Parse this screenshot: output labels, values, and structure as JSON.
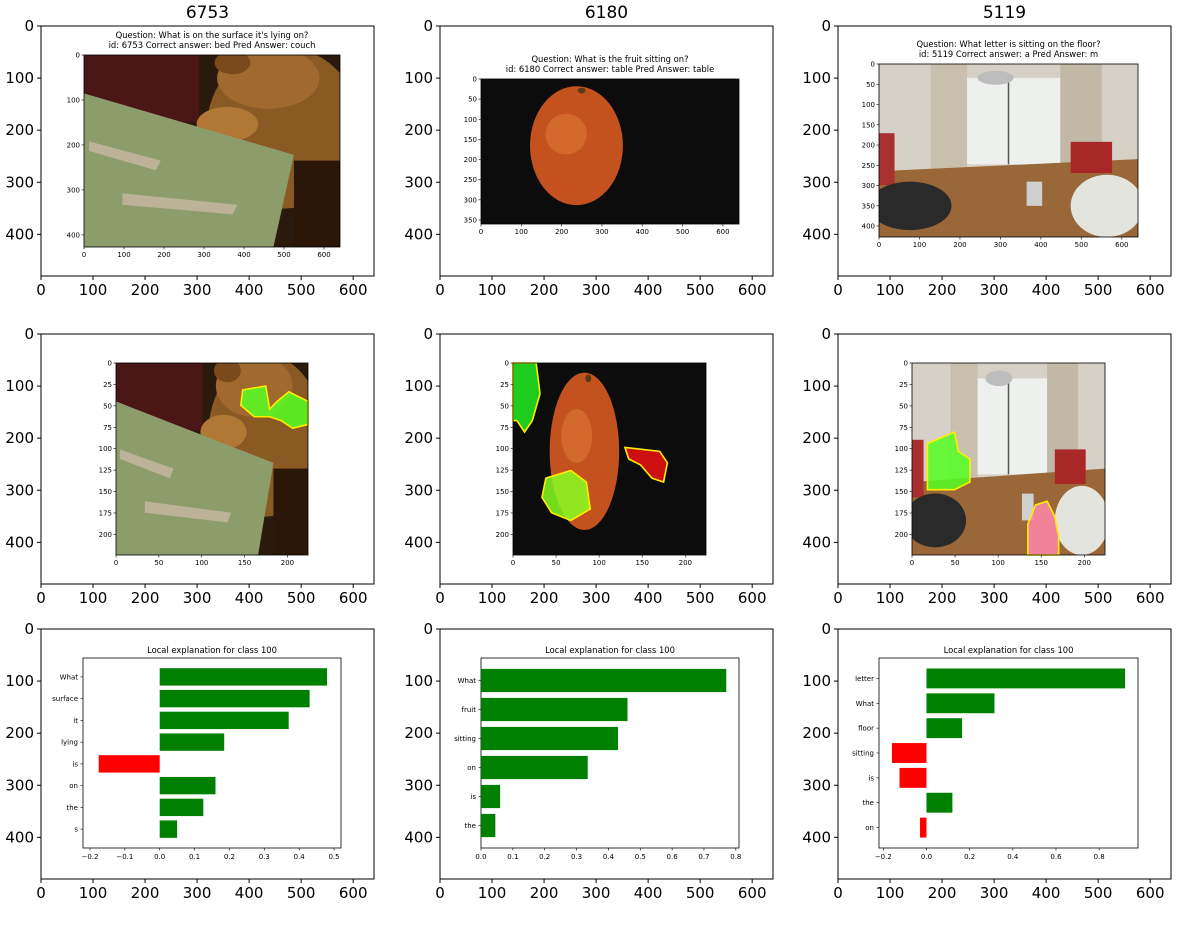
{
  "figure": {
    "columns": [
      {
        "title": "6753",
        "question_line1": "Question: What is on the surface it's lying on?",
        "question_line2": "id: 6753 Correct answer: bed Pred Answer: couch"
      },
      {
        "title": "6180",
        "question_line1": "Question: What is the fruit sitting on?",
        "question_line2": "id: 6180 Correct answer: table Pred Answer: table"
      },
      {
        "title": "5119",
        "question_line1": "Question: What letter is sitting on the floor?",
        "question_line2": "id: 5119 Correct answer: a Pred Answer: m"
      }
    ],
    "outer_axes": {
      "x_ticks": [
        0,
        100,
        200,
        300,
        400,
        500,
        600
      ],
      "y_ticks": [
        0,
        100,
        200,
        300,
        400
      ],
      "xlim": [
        0,
        640
      ],
      "ylim": [
        480,
        0
      ]
    },
    "photos": [
      {
        "column": 0,
        "depicts": "teddy bear holding a Happy Birthday card",
        "colors": [
          "#3a2410",
          "#9a6a2c",
          "#8ea06e"
        ]
      },
      {
        "column": 1,
        "depicts": "orange on a black background",
        "colors": [
          "#0c0c0c",
          "#c95a22",
          "#e07a3a"
        ]
      },
      {
        "column": 2,
        "depicts": "living room with a letter a on the floor",
        "colors": [
          "#d8d2c8",
          "#9a6a3a",
          "#b83030"
        ]
      }
    ]
  },
  "chart_data": [
    {
      "type": "image",
      "panel": "row1-col1",
      "xlim": [
        0,
        640
      ],
      "ylim": [
        427,
        0
      ],
      "x_ticks": [
        0,
        100,
        200,
        300,
        400,
        500,
        600
      ],
      "y_ticks": [
        0,
        100,
        200,
        300,
        400
      ],
      "title": "Question: What is on the surface it's lying on? / id: 6753 Correct answer: bed Pred Answer: couch"
    },
    {
      "type": "image",
      "panel": "row1-col2",
      "xlim": [
        0,
        640
      ],
      "ylim": [
        360,
        0
      ],
      "x_ticks": [
        0,
        100,
        200,
        300,
        400,
        500,
        600
      ],
      "y_ticks": [
        0,
        50,
        100,
        150,
        200,
        250,
        300,
        350
      ],
      "title": "Question: What is the fruit sitting on? / id: 6180 Correct answer: table Pred Answer: table"
    },
    {
      "type": "image",
      "panel": "row1-col3",
      "xlim": [
        0,
        640
      ],
      "ylim": [
        427,
        0
      ],
      "x_ticks": [
        0,
        100,
        200,
        300,
        400,
        500,
        600
      ],
      "y_ticks": [
        0,
        50,
        100,
        150,
        200,
        250,
        300,
        350,
        400
      ],
      "title": "Question: What letter is sitting on the floor? / id: 5119 Correct answer: a Pred Answer: m"
    },
    {
      "type": "image",
      "panel": "row2-col1",
      "xlim": [
        0,
        224
      ],
      "ylim": [
        224,
        0
      ],
      "x_ticks": [
        0,
        50,
        100,
        150,
        200
      ],
      "y_ticks": [
        0,
        25,
        50,
        75,
        100,
        125,
        150,
        175,
        200
      ],
      "overlay": "segmentation highlight"
    },
    {
      "type": "image",
      "panel": "row2-col2",
      "xlim": [
        0,
        224
      ],
      "ylim": [
        224,
        0
      ],
      "x_ticks": [
        0,
        50,
        100,
        150,
        200
      ],
      "y_ticks": [
        0,
        25,
        50,
        75,
        100,
        125,
        150,
        175,
        200
      ],
      "overlay": "segmentation highlight"
    },
    {
      "type": "image",
      "panel": "row2-col3",
      "xlim": [
        0,
        224
      ],
      "ylim": [
        224,
        0
      ],
      "x_ticks": [
        0,
        50,
        100,
        150,
        200
      ],
      "y_ticks": [
        0,
        25,
        50,
        75,
        100,
        125,
        150,
        175,
        200
      ],
      "overlay": "segmentation highlight"
    },
    {
      "type": "bar",
      "orientation": "horizontal",
      "panel": "row3-col1",
      "title": "Local explanation for class 100",
      "categories": [
        "What",
        "surface",
        "it",
        "lying",
        "is",
        "on",
        "the",
        "s"
      ],
      "values": [
        0.48,
        0.43,
        0.37,
        0.185,
        -0.175,
        0.16,
        0.125,
        0.05
      ],
      "xlim": [
        -0.22,
        0.52
      ],
      "x_ticks": [
        -0.2,
        -0.1,
        0.0,
        0.1,
        0.2,
        0.3,
        0.4,
        0.5
      ],
      "x_tick_labels": [
        "−0.2",
        "−0.1",
        "0.0",
        "0.1",
        "0.2",
        "0.3",
        "0.4",
        "0.5"
      ],
      "colors": {
        "positive": "#008000",
        "negative": "#ff0000"
      }
    },
    {
      "type": "bar",
      "orientation": "horizontal",
      "panel": "row3-col2",
      "title": "Local explanation for class 100",
      "categories": [
        "What",
        "fruit",
        "sitting",
        "on",
        "is",
        "the"
      ],
      "values": [
        0.77,
        0.46,
        0.43,
        0.335,
        0.06,
        0.045
      ],
      "xlim": [
        0,
        0.81
      ],
      "x_ticks": [
        0.0,
        0.1,
        0.2,
        0.3,
        0.4,
        0.5,
        0.6,
        0.7,
        0.8
      ],
      "x_tick_labels": [
        "0.0",
        "0.1",
        "0.2",
        "0.3",
        "0.4",
        "0.5",
        "0.6",
        "0.7",
        "0.8"
      ],
      "colors": {
        "positive": "#008000",
        "negative": "#ff0000"
      }
    },
    {
      "type": "bar",
      "orientation": "horizontal",
      "panel": "row3-col3",
      "title": "Local explanation for class 100",
      "categories": [
        "letter",
        "What",
        "floor",
        "sitting",
        "is",
        "the",
        "on"
      ],
      "values": [
        0.92,
        0.315,
        0.165,
        -0.16,
        -0.125,
        0.12,
        -0.03
      ],
      "xlim": [
        -0.22,
        0.98
      ],
      "x_ticks": [
        -0.2,
        0.0,
        0.2,
        0.4,
        0.6,
        0.8
      ],
      "x_tick_labels": [
        "−0.2",
        "0.0",
        "0.2",
        "0.4",
        "0.6",
        "0.8"
      ],
      "colors": {
        "positive": "#008000",
        "negative": "#ff0000"
      }
    }
  ]
}
